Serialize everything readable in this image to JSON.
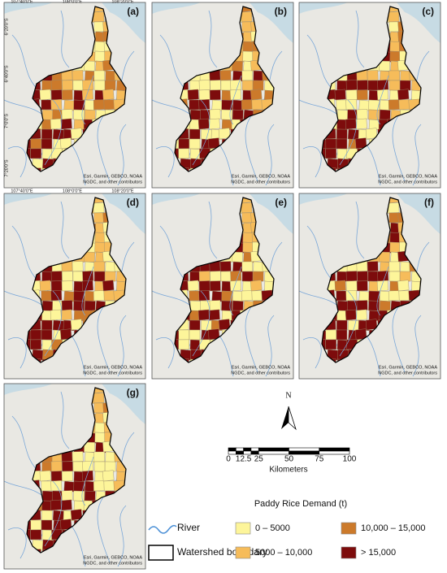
{
  "panels": [
    {
      "label": "(a)"
    },
    {
      "label": "(b)"
    },
    {
      "label": "(c)"
    },
    {
      "label": "(d)"
    },
    {
      "label": "(e)"
    },
    {
      "label": "(f)"
    },
    {
      "label": "(g)"
    }
  ],
  "attribution": [
    "Esri, Garmin, GEBCO, NOAA",
    "NGDC, and other contributors"
  ],
  "coords": {
    "top": [
      "107°40'0\"E",
      "108°0'0\"E",
      "108°20'0\"E"
    ],
    "left": [
      "6°20'0\"S",
      "6°40'0\"S",
      "7°0'0\"S",
      "7°20'0\"S"
    ]
  },
  "north": "N",
  "scale": {
    "labels": [
      "0",
      "12.5",
      "25",
      "50",
      "75",
      "100"
    ],
    "unit": "Kilometers"
  },
  "legend": {
    "title": "Paddy Rice Demand (t)",
    "classes": [
      {
        "label": "0 – 5000",
        "color": "#fdf59a"
      },
      {
        "label": "5000 – 10,000",
        "color": "#f6bc5a"
      },
      {
        "label": "10,000 – 15,000",
        "color": "#cc7a2b"
      },
      {
        "label": "> 15,000",
        "color": "#7d0c0c"
      }
    ],
    "river": "River",
    "boundary": "Watershed boundary"
  }
}
